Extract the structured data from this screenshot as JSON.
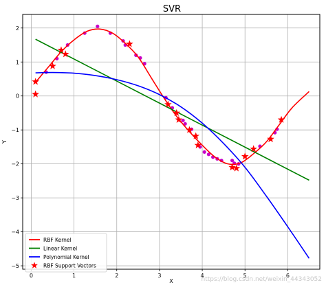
{
  "chart_data": {
    "type": "line",
    "title": "SVR",
    "xlabel": "X",
    "ylabel": "Y",
    "xlim": [
      -0.2,
      6.75
    ],
    "ylim": [
      -5.1,
      2.4
    ],
    "xticks": [
      0,
      1,
      2,
      3,
      4,
      5,
      6
    ],
    "yticks": [
      2,
      1,
      0,
      -1,
      -2,
      -3,
      -4,
      -5
    ],
    "grid": true,
    "legend_position": "bottom-left",
    "series": [
      {
        "name": "RBF Kernel",
        "kind": "line",
        "color": "#ff0000",
        "x": [
          0.1,
          0.4,
          0.7,
          1.0,
          1.3,
          1.6,
          1.9,
          2.2,
          2.5,
          2.8,
          3.1,
          3.4,
          3.7,
          4.0,
          4.3,
          4.6,
          4.9,
          5.2,
          5.5,
          5.8,
          6.1,
          6.5
        ],
        "y": [
          0.4,
          0.85,
          1.3,
          1.65,
          1.9,
          1.97,
          1.85,
          1.55,
          1.15,
          0.55,
          -0.05,
          -0.6,
          -1.05,
          -1.45,
          -1.8,
          -2.0,
          -1.97,
          -1.7,
          -1.35,
          -0.85,
          -0.35,
          0.13
        ]
      },
      {
        "name": "Linear Kernel",
        "kind": "line",
        "color": "#008000",
        "x": [
          0.1,
          6.5
        ],
        "y": [
          1.67,
          -2.48
        ]
      },
      {
        "name": "Polynomial Kernel",
        "kind": "line",
        "color": "#0000ff",
        "x": [
          0.1,
          0.5,
          1.0,
          1.5,
          2.0,
          2.5,
          3.0,
          3.5,
          4.0,
          4.5,
          5.0,
          5.5,
          6.0,
          6.5
        ],
        "y": [
          0.68,
          0.69,
          0.67,
          0.6,
          0.48,
          0.3,
          0.04,
          -0.32,
          -0.8,
          -1.4,
          -2.1,
          -2.95,
          -3.85,
          -4.78
        ]
      },
      {
        "name": "RBF Support Vectors",
        "kind": "scatter",
        "marker": "star",
        "color": "#ff0000",
        "x": [
          0.1,
          0.1,
          0.5,
          0.7,
          0.8,
          2.3,
          3.2,
          3.4,
          3.45,
          3.7,
          3.85,
          3.9,
          4.7,
          4.8,
          5.0,
          5.2,
          5.6,
          5.85
        ],
        "y": [
          0.42,
          0.05,
          0.88,
          1.35,
          1.23,
          1.53,
          -0.25,
          -0.5,
          -0.7,
          -1.0,
          -1.18,
          -1.45,
          -2.1,
          -2.13,
          -1.78,
          -1.56,
          -1.27,
          -0.7
        ]
      },
      {
        "name": "",
        "kind": "scatter",
        "marker": "dot",
        "color": "#c800c8",
        "x": [
          0.35,
          0.6,
          0.85,
          1.25,
          1.55,
          1.85,
          2.15,
          2.2,
          2.45,
          2.55,
          2.65,
          3.15,
          3.3,
          3.55,
          3.6,
          3.75,
          3.95,
          4.05,
          4.15,
          4.25,
          4.35,
          4.45,
          4.7,
          4.75,
          4.85,
          5.35,
          5.7,
          5.75
        ],
        "y": [
          0.7,
          1.1,
          1.5,
          1.85,
          2.05,
          1.85,
          1.62,
          1.5,
          1.2,
          1.12,
          0.95,
          -0.05,
          -0.35,
          -0.72,
          -0.82,
          -0.98,
          -1.5,
          -1.65,
          -1.72,
          -1.8,
          -1.85,
          -1.9,
          -1.9,
          -1.98,
          -2.0,
          -1.48,
          -1.08,
          -0.98
        ]
      }
    ]
  },
  "watermark": "https://blog.csdn.net/weixin_44343052"
}
